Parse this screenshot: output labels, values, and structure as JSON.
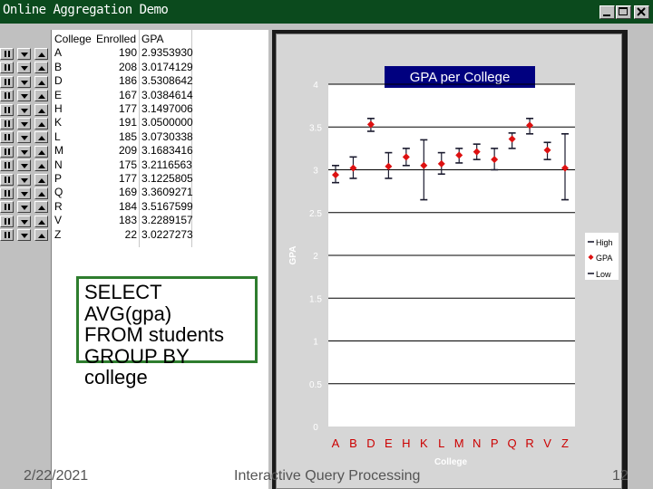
{
  "window": {
    "title": "Online Aggregation Demo"
  },
  "table": {
    "headers": [
      "College",
      "Enrolled",
      "GPA"
    ],
    "rows": [
      [
        "A",
        "190",
        "2.9353930"
      ],
      [
        "B",
        "208",
        "3.0174129"
      ],
      [
        "D",
        "186",
        "3.5308642"
      ],
      [
        "E",
        "167",
        "3.0384614"
      ],
      [
        "H",
        "177",
        "3.1497006"
      ],
      [
        "K",
        "191",
        "3.0500000"
      ],
      [
        "L",
        "185",
        "3.0730338"
      ],
      [
        "M",
        "209",
        "3.1683416"
      ],
      [
        "N",
        "175",
        "3.2116563"
      ],
      [
        "P",
        "177",
        "3.1225805"
      ],
      [
        "Q",
        "169",
        "3.3609271"
      ],
      [
        "R",
        "184",
        "3.5167599"
      ],
      [
        "V",
        "183",
        "3.2289157"
      ],
      [
        "Z",
        "22",
        "3.0227273"
      ]
    ]
  },
  "sql": [
    "SELECT",
    "AVG(gpa)",
    "FROM students",
    "GROUP BY",
    "college"
  ],
  "chart_data": {
    "type": "scatter",
    "title": "GPA per College",
    "xlabel": "College",
    "ylabel": "GPA",
    "ylim": [
      0,
      4
    ],
    "yticks": [
      "0",
      "0.5",
      "1",
      "1.5",
      "2",
      "2.5",
      "3",
      "3.5",
      "4"
    ],
    "categories": [
      "A",
      "B",
      "D",
      "E",
      "H",
      "K",
      "L",
      "M",
      "N",
      "P",
      "Q",
      "R",
      "V",
      "Z"
    ],
    "series": [
      {
        "name": "High",
        "values": [
          3.05,
          3.15,
          3.6,
          3.2,
          3.25,
          3.35,
          3.2,
          3.25,
          3.3,
          3.25,
          3.43,
          3.6,
          3.32,
          3.42
        ]
      },
      {
        "name": "GPA",
        "values": [
          2.94,
          3.02,
          3.53,
          3.04,
          3.15,
          3.05,
          3.07,
          3.17,
          3.21,
          3.12,
          3.36,
          3.52,
          3.23,
          3.02
        ]
      },
      {
        "name": "Low",
        "values": [
          2.85,
          2.9,
          3.45,
          2.9,
          3.05,
          2.65,
          2.95,
          3.08,
          3.12,
          3.0,
          3.25,
          3.42,
          3.12,
          2.65
        ]
      }
    ],
    "legend": [
      "High",
      "GPA",
      "Low"
    ],
    "legend_position": "right",
    "grid": true,
    "colors": {
      "gpa_marker": "#dd1111",
      "error_bar": "#1a1a2e",
      "title_bg": "#00007f",
      "axis_text": "#ffffff",
      "category_text": "#cc0000"
    }
  },
  "footer": {
    "date": "2/22/2021",
    "title": "Interactive Query Processing",
    "page": "12"
  }
}
